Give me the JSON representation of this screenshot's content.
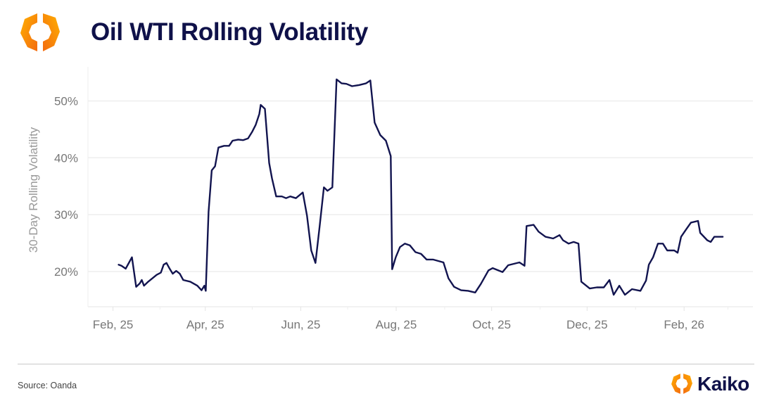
{
  "header": {
    "title": "Oil WTI Rolling Volatility",
    "logo_icon": "kaiko-hexagon-logo-icon"
  },
  "footer": {
    "source": "Source: Oanda",
    "brand_name": "Kaiko",
    "brand_icon": "kaiko-hexagon-logo-icon"
  },
  "colors": {
    "line": "#12144f",
    "title": "#0f1149",
    "grid": "#eeeeee",
    "axis_text": "#777777",
    "logo_orange": "#f7931e",
    "logo_yellow": "#ffb000"
  },
  "chart_data": {
    "type": "line",
    "title": "Oil WTI Rolling Volatility",
    "xlabel": "",
    "ylabel": "30-Day Rolling Volatility",
    "x_units": "days since Feb 1, 2025",
    "xlim": [
      -16,
      409
    ],
    "ylim": [
      13.8,
      56
    ],
    "grid": true,
    "legend": "none",
    "x_ticks": [
      {
        "value": 0,
        "label": "Feb, 25"
      },
      {
        "value": 59,
        "label": "Apr, 25"
      },
      {
        "value": 120,
        "label": "Jun, 25"
      },
      {
        "value": 181,
        "label": "Aug, 25"
      },
      {
        "value": 242,
        "label": "Oct, 25"
      },
      {
        "value": 303,
        "label": "Dec, 25"
      },
      {
        "value": 365,
        "label": "Feb, 26"
      }
    ],
    "x_minor_ticks": [
      30,
      89,
      150,
      212,
      273,
      334,
      393
    ],
    "y_ticks": [
      {
        "value": 20,
        "label": "20%"
      },
      {
        "value": 30,
        "label": "30%"
      },
      {
        "value": 40,
        "label": "40%"
      },
      {
        "value": 50,
        "label": "50%"
      }
    ],
    "series": [
      {
        "name": "30-Day Rolling Volatility",
        "x": [
          3.6,
          5.4,
          8.1,
          10.3,
          12.1,
          14.8,
          17.1,
          18.4,
          19.8,
          22.5,
          25.2,
          27.9,
          30.6,
          32.4,
          34.2,
          36,
          38.2,
          40.4,
          42.7,
          44.9,
          49.4,
          53.9,
          56.6,
          58.4,
          59.3,
          61.1,
          63.1,
          65.2,
          67.4,
          71,
          74.2,
          76.4,
          80,
          83.1,
          86.3,
          89,
          91.2,
          93.5,
          94.4,
          97.1,
          99.8,
          101.6,
          104.3,
          107.9,
          110.6,
          113.3,
          116.9,
          121.3,
          124,
          126.7,
          129.4,
          132.1,
          134.8,
          137.1,
          140.2,
          142.9,
          146.1,
          149.2,
          152.8,
          157.3,
          161.8,
          164.5,
          167.2,
          170.8,
          174.4,
          177.5,
          178.4,
          180.7,
          183.4,
          186.5,
          189.7,
          193.3,
          196.9,
          200.4,
          204.5,
          211.2,
          214.4,
          218,
          222.5,
          227,
          231.5,
          235.1,
          240,
          242.7,
          249,
          252.6,
          259.8,
          263,
          264.3,
          268.8,
          272,
          276.4,
          281.3,
          285.4,
          287.6,
          291.2,
          294.4,
          297.5,
          299.3,
          304.7,
          309.2,
          313.7,
          317.3,
          320,
          323.6,
          327.2,
          331.7,
          337.1,
          340.7,
          342.5,
          345.2,
          348.3,
          351.5,
          354.2,
          358.7,
          360.9,
          363.1,
          366.3,
          369.4,
          373.9,
          375.3,
          379.8,
          382,
          384.3,
          389.7
        ],
        "values": [
          21.2,
          21.0,
          20.5,
          21.6,
          22.5,
          17.3,
          17.9,
          18.5,
          17.5,
          18.2,
          18.8,
          19.4,
          19.8,
          21.2,
          21.5,
          20.6,
          19.6,
          20.1,
          19.6,
          18.5,
          18.2,
          17.5,
          16.7,
          17.5,
          16.6,
          30.5,
          37.8,
          38.5,
          41.8,
          42.1,
          42.1,
          43.0,
          43.2,
          43.1,
          43.4,
          44.6,
          45.8,
          47.7,
          49.3,
          48.6,
          39.1,
          36.4,
          33.2,
          33.2,
          32.9,
          33.2,
          32.9,
          33.9,
          29.8,
          23.7,
          21.5,
          28.0,
          34.8,
          34.2,
          34.8,
          53.8,
          53.1,
          53.0,
          52.6,
          52.8,
          53.1,
          53.6,
          46.2,
          44.0,
          43.0,
          40.3,
          20.4,
          22.5,
          24.3,
          24.9,
          24.6,
          23.4,
          23.1,
          22.1,
          22.1,
          21.6,
          18.8,
          17.3,
          16.7,
          16.6,
          16.3,
          17.8,
          20.2,
          20.6,
          19.9,
          21.1,
          21.6,
          21.0,
          28.0,
          28.2,
          27.0,
          26.1,
          25.8,
          26.4,
          25.5,
          24.9,
          25.2,
          24.9,
          18.2,
          17.0,
          17.2,
          17.2,
          18.5,
          15.9,
          17.5,
          15.9,
          16.9,
          16.6,
          18.4,
          21.2,
          22.5,
          24.9,
          24.9,
          23.7,
          23.7,
          23.3,
          26.1,
          27.4,
          28.6,
          28.9,
          26.8,
          25.5,
          25.2,
          26.1,
          26.1
        ]
      }
    ]
  }
}
